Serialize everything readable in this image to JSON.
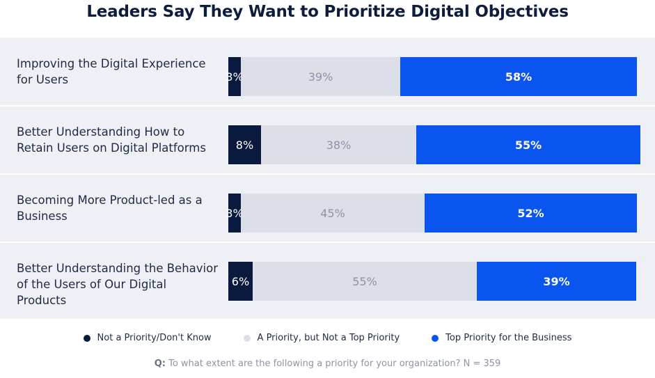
{
  "title": "Leaders Say They Want to Prioritize Digital Objectives",
  "colors": {
    "not_priority": "#0a1a3f",
    "a_priority": "#dcdfe8",
    "top_priority": "#0a55f0"
  },
  "chart_data": {
    "type": "bar",
    "orientation": "horizontal",
    "stacked": "100%",
    "title": "Leaders Say They Want to Prioritize Digital Objectives",
    "categories": [
      [
        "Improving the Digital Experience",
        "for Users"
      ],
      [
        "Better Understanding How to",
        "Retain Users on Digital Platforms"
      ],
      [
        "Becoming More Product-led as a",
        "Business"
      ],
      [
        "Better Understanding the Behavior",
        "of the Users of Our Digital Products"
      ]
    ],
    "series": [
      {
        "name": "Not a Priority/Don't Know",
        "values": [
          3,
          8,
          3,
          6
        ],
        "labels": [
          "3%",
          "8%",
          "3%",
          "6%"
        ]
      },
      {
        "name": "A Priority, but Not a Top Priority",
        "values": [
          39,
          38,
          45,
          55
        ],
        "labels": [
          "39%",
          "38%",
          "45%",
          "55%"
        ]
      },
      {
        "name": "Top Priority for the Business",
        "values": [
          58,
          55,
          52,
          39
        ],
        "labels": [
          "58%",
          "55%",
          "52%",
          "39%"
        ]
      }
    ],
    "legend_position": "bottom",
    "grid": false
  },
  "legend": [
    {
      "label": "Not a Priority/Don't Know",
      "color": "#0a1a3f"
    },
    {
      "label": "A Priority, but Not a Top Priority",
      "color": "#dcdfe8"
    },
    {
      "label": "Top Priority for the Business",
      "color": "#0a55f0"
    }
  ],
  "footnote": {
    "prefix": "Q:",
    "text": " To what extent are the following a priority for your organization? N = 359"
  }
}
